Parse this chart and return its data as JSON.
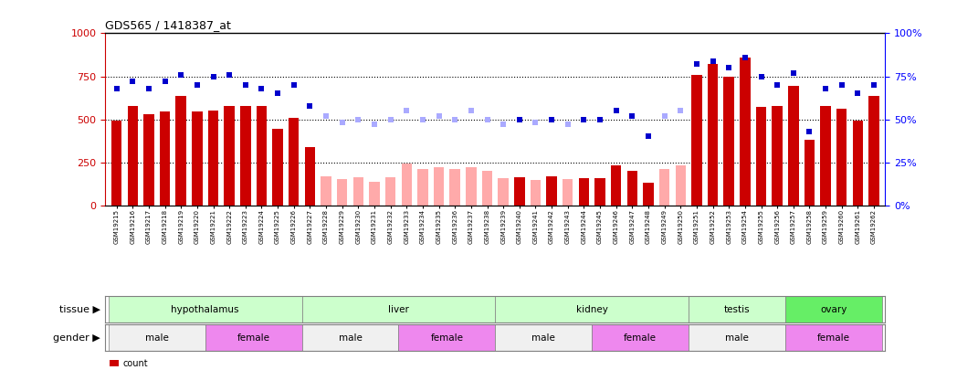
{
  "title": "GDS565 / 1418387_at",
  "samples": [
    "GSM19215",
    "GSM19216",
    "GSM19217",
    "GSM19218",
    "GSM19219",
    "GSM19220",
    "GSM19221",
    "GSM19222",
    "GSM19223",
    "GSM19224",
    "GSM19225",
    "GSM19226",
    "GSM19227",
    "GSM19228",
    "GSM19229",
    "GSM19230",
    "GSM19231",
    "GSM19232",
    "GSM19233",
    "GSM19234",
    "GSM19235",
    "GSM19236",
    "GSM19237",
    "GSM19238",
    "GSM19239",
    "GSM19240",
    "GSM19241",
    "GSM19242",
    "GSM19243",
    "GSM19244",
    "GSM19245",
    "GSM19246",
    "GSM19247",
    "GSM19248",
    "GSM19249",
    "GSM19250",
    "GSM19251",
    "GSM19252",
    "GSM19253",
    "GSM19254",
    "GSM19255",
    "GSM19256",
    "GSM19257",
    "GSM19258",
    "GSM19259",
    "GSM19260",
    "GSM19261",
    "GSM19262"
  ],
  "count_present": [
    490,
    580,
    530,
    545,
    635,
    545,
    550,
    580,
    575,
    580,
    445,
    510,
    340,
    null,
    null,
    null,
    null,
    null,
    null,
    null,
    null,
    null,
    null,
    null,
    null,
    162,
    null,
    170,
    null,
    158,
    160,
    235,
    200,
    130,
    null,
    null,
    760,
    820,
    745,
    860,
    572,
    580,
    693,
    383,
    580,
    560,
    490,
    638
  ],
  "count_absent": [
    null,
    null,
    null,
    null,
    null,
    null,
    null,
    null,
    null,
    null,
    null,
    null,
    null,
    170,
    152,
    162,
    138,
    162,
    242,
    213,
    222,
    210,
    222,
    200,
    160,
    null,
    150,
    null,
    152,
    null,
    null,
    null,
    null,
    null,
    210,
    232,
    null,
    null,
    null,
    null,
    null,
    null,
    null,
    null,
    null,
    null,
    null,
    null
  ],
  "rank_present": [
    68,
    72,
    68,
    72,
    76,
    70,
    75,
    76,
    70,
    68,
    65,
    70,
    58,
    null,
    null,
    null,
    null,
    null,
    null,
    null,
    null,
    null,
    null,
    null,
    null,
    50,
    null,
    50,
    null,
    50,
    50,
    55,
    52,
    40,
    null,
    null,
    82,
    84,
    80,
    86,
    75,
    70,
    77,
    43,
    68,
    70,
    65,
    70
  ],
  "rank_absent": [
    null,
    null,
    null,
    null,
    null,
    null,
    null,
    null,
    null,
    null,
    null,
    null,
    null,
    52,
    48,
    50,
    47,
    50,
    55,
    50,
    52,
    50,
    55,
    50,
    47,
    null,
    48,
    null,
    47,
    null,
    null,
    null,
    null,
    null,
    52,
    55,
    null,
    null,
    null,
    null,
    null,
    null,
    null,
    null,
    null,
    null,
    null,
    null
  ],
  "tissue_groups": [
    {
      "label": "hypothalamus",
      "start": 0,
      "end": 11,
      "color": "#ccffcc"
    },
    {
      "label": "liver",
      "start": 12,
      "end": 23,
      "color": "#ccffcc"
    },
    {
      "label": "kidney",
      "start": 24,
      "end": 35,
      "color": "#ccffcc"
    },
    {
      "label": "testis",
      "start": 36,
      "end": 41,
      "color": "#ccffcc"
    },
    {
      "label": "ovary",
      "start": 42,
      "end": 47,
      "color": "#66ee66"
    }
  ],
  "gender_groups": [
    {
      "label": "male",
      "start": 0,
      "end": 5,
      "color": "#f0f0f0"
    },
    {
      "label": "female",
      "start": 6,
      "end": 11,
      "color": "#ee88ee"
    },
    {
      "label": "male",
      "start": 12,
      "end": 17,
      "color": "#f0f0f0"
    },
    {
      "label": "female",
      "start": 18,
      "end": 23,
      "color": "#ee88ee"
    },
    {
      "label": "male",
      "start": 24,
      "end": 29,
      "color": "#f0f0f0"
    },
    {
      "label": "female",
      "start": 30,
      "end": 35,
      "color": "#ee88ee"
    },
    {
      "label": "male",
      "start": 36,
      "end": 41,
      "color": "#f0f0f0"
    },
    {
      "label": "female",
      "start": 42,
      "end": 47,
      "color": "#ee88ee"
    }
  ],
  "bar_color_present": "#cc0000",
  "bar_color_absent": "#ffaaaa",
  "dot_color_present": "#0000cc",
  "dot_color_absent": "#aaaaff",
  "ylim_left": [
    0,
    1000
  ],
  "ylim_right": [
    0,
    100
  ],
  "yticks_left": [
    0,
    250,
    500,
    750,
    1000
  ],
  "yticks_right": [
    0,
    25,
    50,
    75,
    100
  ],
  "background_color": "#ffffff"
}
